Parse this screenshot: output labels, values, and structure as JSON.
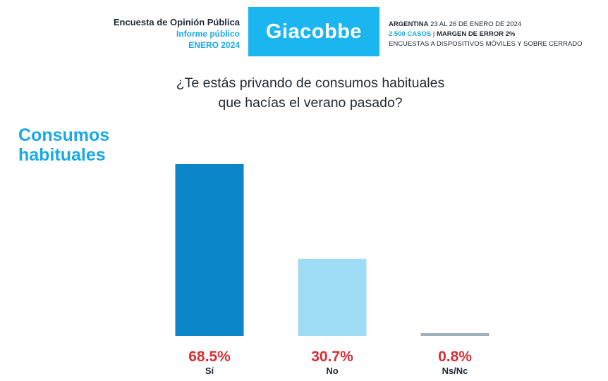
{
  "header": {
    "left_line1": "Encuesta de Opinión Pública",
    "left_line2": "Informe público",
    "left_line3": "ENERO 2024",
    "brand": "Giacobbe",
    "right_country": "ARGENTINA",
    "right_dates": "23 AL 26 DE ENERO DE 2024",
    "right_cases": "2.500 CASOS",
    "right_sep": "|",
    "right_margin": "MARGEN DE ERROR 2%",
    "right_method": "ENCUESTAS A DISPOSITIVOS MÓVILES Y SOBRE CERRADO"
  },
  "question": {
    "line1": "¿Te estás privando de consumos habituales",
    "line2": "que hacías el verano pasado?"
  },
  "section_title": {
    "line1": "Consumos",
    "line2": "habituales"
  },
  "chart_data": {
    "type": "bar",
    "categories": [
      "Sí",
      "No",
      "Ns/Nc"
    ],
    "values": [
      68.5,
      30.7,
      0.8
    ],
    "value_labels": [
      "68.5%",
      "30.7%",
      "0.8%"
    ],
    "colors": [
      "#0a86c8",
      "#9fdcf6",
      "#9fb0b8"
    ],
    "ylim": [
      0,
      70
    ],
    "grid": false,
    "value_label_color": "#d63035"
  }
}
